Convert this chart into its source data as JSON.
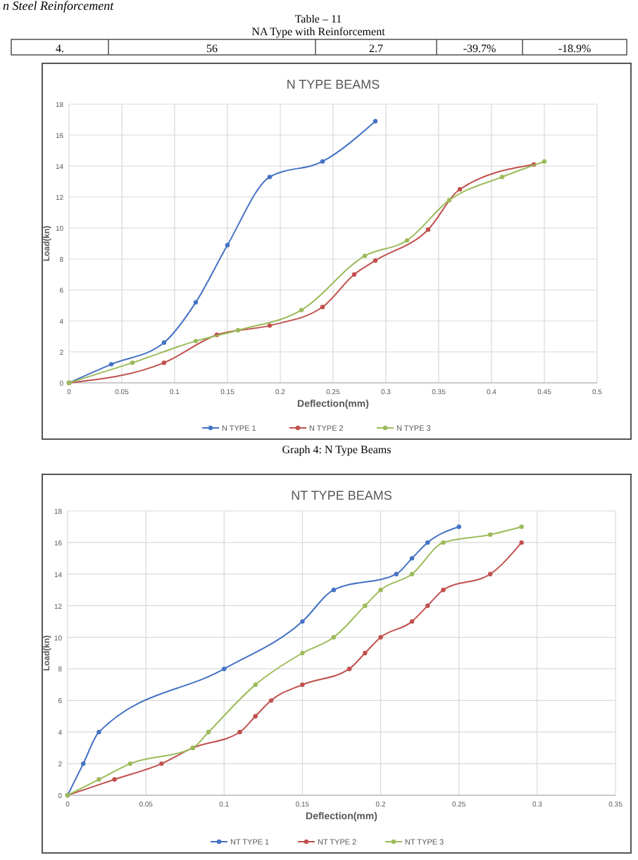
{
  "chart_data": [
    {
      "type": "other",
      "title": "Table – 11",
      "subtitle": "NA Type with Reinforcement",
      "annotations": [
        "n Steel Reinforcement"
      ],
      "categories": [
        "4.",
        "56",
        "2.7",
        "-39.7%",
        "-18.9%"
      ]
    },
    {
      "type": "line",
      "title": "N TYPE BEAMS",
      "xlabel": "Deflection(mm)",
      "ylabel": "Load(kn)",
      "xlim": [
        0,
        0.5
      ],
      "xticks": [
        0,
        0.05,
        0.1,
        0.15,
        0.2,
        0.25,
        0.3,
        0.35,
        0.4,
        0.45,
        0.5
      ],
      "ylim": [
        0,
        18
      ],
      "yticks": [
        0,
        2,
        4,
        6,
        8,
        10,
        12,
        14,
        16,
        18
      ],
      "grid": true,
      "legend": "bottom",
      "marker": "circle",
      "annotations": [
        "Graph 4: N Type Beams"
      ],
      "series": [
        {
          "name": "N TYPE 1",
          "color": "#4472c4",
          "x": [
            0,
            0.04,
            0.09,
            0.12,
            0.15,
            0.19,
            0.24,
            0.29
          ],
          "values": [
            0,
            1.2,
            2.6,
            5.2,
            8.9,
            13.3,
            14.3,
            16.9
          ]
        },
        {
          "name": "N TYPE 2",
          "color": "#c0504d",
          "x": [
            0,
            0.09,
            0.14,
            0.19,
            0.24,
            0.27,
            0.29,
            0.34,
            0.37,
            0.44
          ],
          "values": [
            0,
            1.3,
            3.1,
            3.7,
            4.9,
            7,
            7.9,
            9.9,
            12.5,
            14.1
          ]
        },
        {
          "name": "N TYPE 3",
          "color": "#9bbb59",
          "x": [
            0,
            0.06,
            0.12,
            0.16,
            0.22,
            0.28,
            0.32,
            0.36,
            0.41,
            0.45
          ],
          "values": [
            0,
            1.3,
            2.7,
            3.4,
            4.7,
            8.2,
            9.2,
            11.8,
            13.3,
            14.3
          ]
        }
      ]
    },
    {
      "type": "line",
      "title": "NT TYPE BEAMS",
      "xlabel": "Deflection(mm)",
      "ylabel": "Load(kn)",
      "xlim": [
        0,
        0.35
      ],
      "xticks": [
        0,
        0.05,
        0.1,
        0.15,
        0.2,
        0.25,
        0.3,
        0.35
      ],
      "ylim": [
        0,
        18
      ],
      "yticks": [
        0,
        2,
        4,
        6,
        8,
        10,
        12,
        14,
        16,
        18
      ],
      "grid": true,
      "legend": "bottom",
      "marker": "circle",
      "series": [
        {
          "name": "NT TYPE 1",
          "color": "#4472c4",
          "x": [
            0,
            0.01,
            0.02,
            0.1,
            0.15,
            0.17,
            0.21,
            0.22,
            0.23,
            0.25
          ],
          "values": [
            0,
            2,
            4,
            8,
            11,
            13,
            14,
            15,
            16,
            17
          ]
        },
        {
          "name": "NT TYPE 2",
          "color": "#c0504d",
          "x": [
            0,
            0.03,
            0.06,
            0.08,
            0.11,
            0.12,
            0.13,
            0.15,
            0.18,
            0.19,
            0.2,
            0.22,
            0.23,
            0.24,
            0.27,
            0.29
          ],
          "values": [
            0,
            1,
            2,
            3,
            4,
            5,
            6,
            7,
            8,
            9,
            10,
            11,
            12,
            13,
            14,
            16
          ]
        },
        {
          "name": "NT TYPE 3",
          "color": "#9bbb59",
          "x": [
            0,
            0.02,
            0.04,
            0.08,
            0.09,
            0.12,
            0.15,
            0.17,
            0.19,
            0.2,
            0.22,
            0.24,
            0.27,
            0.29
          ],
          "values": [
            0,
            1,
            2,
            3,
            4,
            7,
            9,
            10,
            12,
            13,
            14,
            16,
            16.5,
            17
          ]
        }
      ]
    }
  ]
}
